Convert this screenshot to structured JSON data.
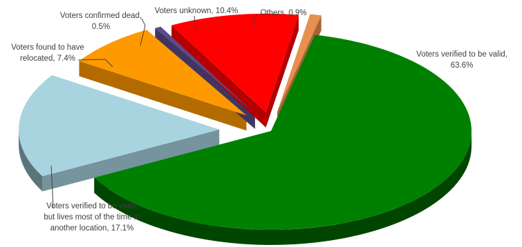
{
  "chart_data": {
    "type": "pie",
    "title": "",
    "style": "3d-exploded",
    "slices": [
      {
        "label": "Voters verified to be valid",
        "value": 63.6,
        "color": "#008000",
        "text_lines": [
          "Voters verified to be valid,",
          "63.6%"
        ]
      },
      {
        "label": "Voters verified to be valid, but lives most of the time in another location",
        "value": 17.1,
        "color": "#A8D4E0",
        "text_lines": [
          "Voters verified to be valid,",
          "but lives most of the time in",
          "another location, 17.1%"
        ]
      },
      {
        "label": "Voters found to have relocated",
        "value": 7.4,
        "color": "#FF9900",
        "text_lines": [
          "Voters found to have",
          "relocated, 7.4%"
        ]
      },
      {
        "label": "Voters confirmed dead",
        "value": 0.5,
        "color": "#5B4B8A",
        "text_lines": [
          "Voters confirmed dead,",
          "0.5%"
        ]
      },
      {
        "label": "Voters unknown",
        "value": 10.4,
        "color": "#FF0000",
        "text_lines": [
          "Voters unknown, 10.4%"
        ]
      },
      {
        "label": "Others",
        "value": 0.9,
        "color": "#E9904E",
        "text_lines": [
          "Others, 0.9%"
        ]
      }
    ]
  }
}
